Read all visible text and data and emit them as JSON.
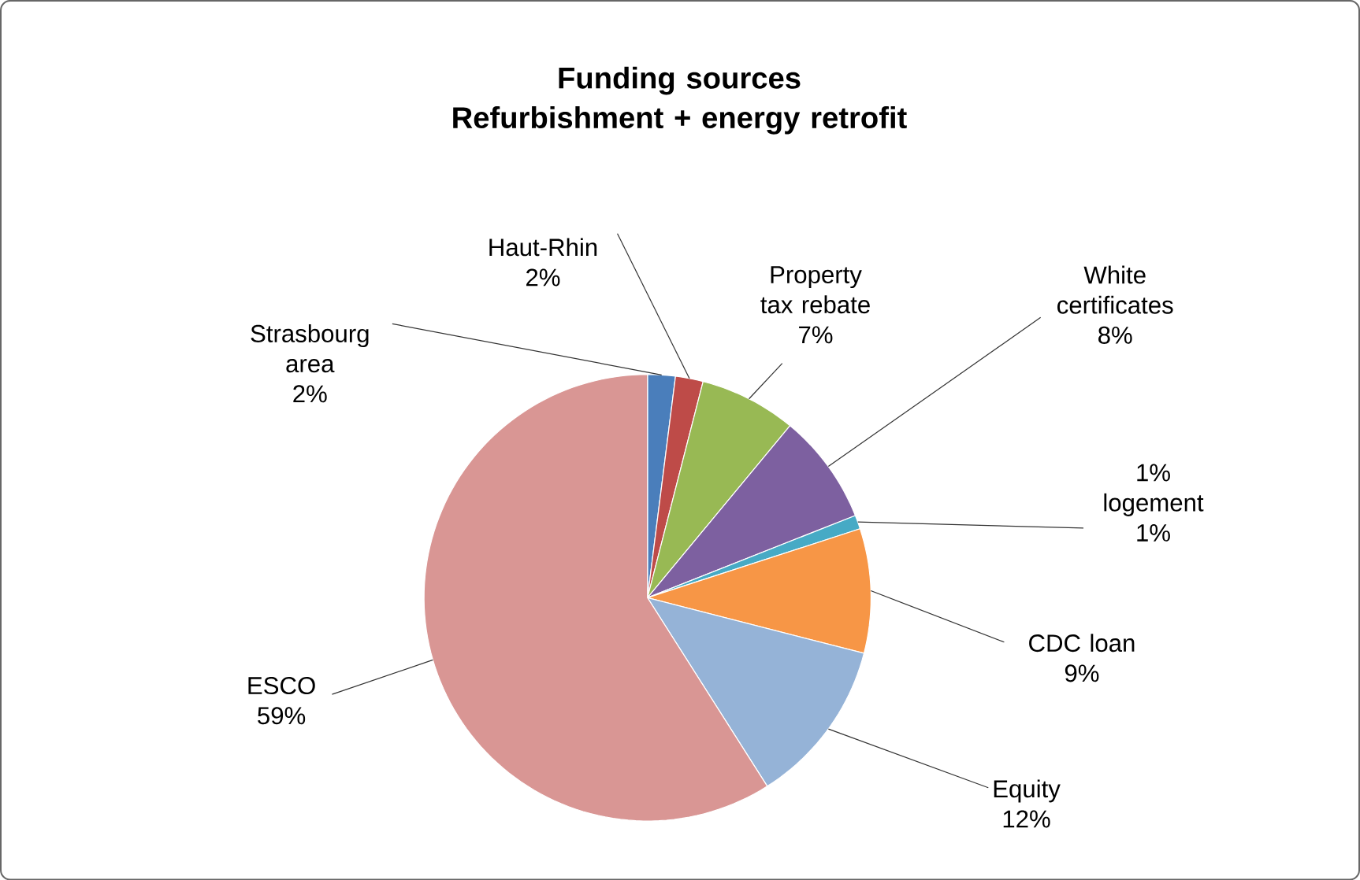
{
  "chart_data": {
    "type": "pie",
    "title": "Funding sources\nRefurbishment + energy retrofit",
    "categories": [
      "Strasbourg area",
      "Haut-Rhin",
      "Property tax rebate",
      "White certificates",
      "1% logement",
      "CDC loan",
      "Equity",
      "ESCO"
    ],
    "values": [
      2,
      2,
      7,
      8,
      1,
      9,
      12,
      59
    ],
    "value_labels": [
      "2%",
      "2%",
      "7%",
      "8%",
      "1%",
      "9%",
      "12%",
      "59%"
    ],
    "colors": [
      "#4a7ebb",
      "#be4b48",
      "#98b954",
      "#7d60a0",
      "#46aac5",
      "#f79646",
      "#95b3d7",
      "#d99694"
    ]
  }
}
